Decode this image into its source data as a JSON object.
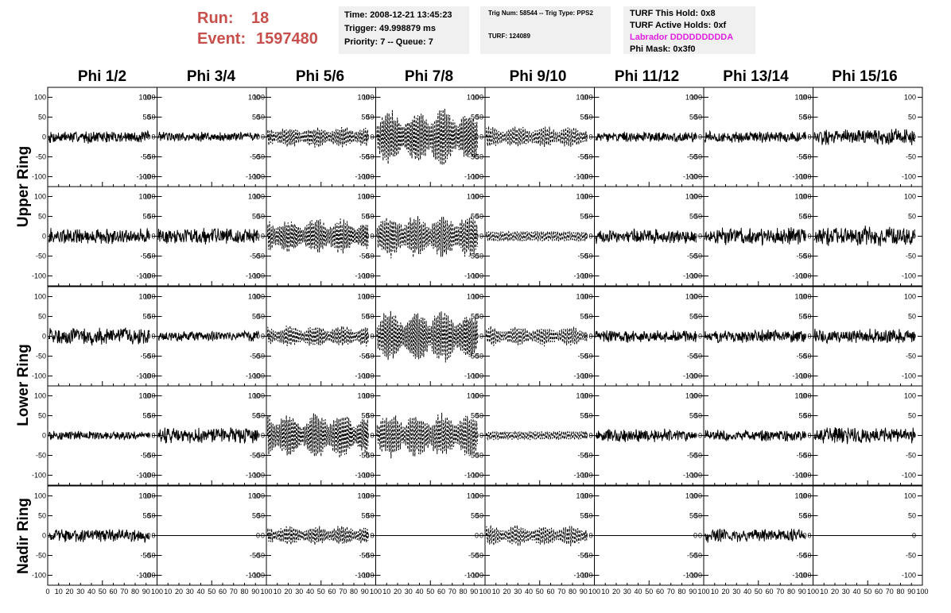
{
  "run": {
    "run_label": "Run:",
    "run_value": "18",
    "event_label": "Event:",
    "event_value": "1597480"
  },
  "info_time": {
    "time": "Time: 2008-12-21 13:45:23",
    "trigger": "Trigger: 49.998879 ms",
    "priority": "Priority: 7 -- Queue: 7"
  },
  "info_trig": {
    "trig": "Trig Num: 58544 -- Trig Type: PPS2",
    "turf": "TURF: 124089"
  },
  "info_turf": {
    "hold": "TURF This Hold: 0x8",
    "active": "TURF Active Holds: 0xf",
    "labrador": "Labrador DDDDDDDDDA",
    "mask": "Phi Mask: 0x3f0",
    "labrador_color": "#e020e0"
  },
  "colors": {
    "run_text": "#c8504c",
    "info_bg": "#f0f0f0",
    "trace": "#000000"
  },
  "chart_data": {
    "type": "line",
    "columns": [
      "Phi 1/2",
      "Phi 3/4",
      "Phi 5/6",
      "Phi 7/8",
      "Phi 9/10",
      "Phi 11/12",
      "Phi 13/14",
      "Phi 15/16"
    ],
    "rows": [
      "Upper Ring",
      "Upper Ring",
      "Lower Ring",
      "Lower Ring",
      "Nadir Ring"
    ],
    "row_labels": [
      "Upper Ring",
      "Lower Ring",
      "Nadir Ring"
    ],
    "xlim": [
      0,
      100
    ],
    "ylim": [
      -125,
      125
    ],
    "x_ticks": [
      0,
      10,
      20,
      30,
      40,
      50,
      60,
      70,
      80,
      90,
      100
    ],
    "x_tick_labels": [
      "0",
      "10",
      "20",
      "30",
      "40",
      "50",
      "60",
      "70",
      "80",
      "90",
      "100"
    ],
    "y_ticks": [
      100,
      50,
      0,
      -50,
      -100
    ],
    "y_tick_labels": [
      "100",
      "50",
      "0",
      "-50",
      "-100"
    ],
    "grid": false,
    "traces": [
      [
        {
          "amp": 17,
          "style": "solid",
          "freq": 0,
          "env": false
        },
        {
          "amp": 14,
          "style": "solid",
          "freq": 0,
          "env": false
        },
        {
          "amp": 28,
          "style": "dashed",
          "freq": 0.55,
          "env": true
        },
        {
          "amp": 75,
          "style": "dashed",
          "freq": 0.6,
          "env": true
        },
        {
          "amp": 30,
          "style": "dashed",
          "freq": 0.5,
          "env": true
        },
        {
          "amp": 14,
          "style": "solid",
          "freq": 0,
          "env": false
        },
        {
          "amp": 16,
          "style": "solid",
          "freq": 0,
          "env": false
        },
        {
          "amp": 22,
          "style": "solid",
          "freq": 0,
          "env": false
        }
      ],
      [
        {
          "amp": 22,
          "style": "solid",
          "freq": 0,
          "env": false
        },
        {
          "amp": 22,
          "style": "solid",
          "freq": 0,
          "env": false
        },
        {
          "amp": 48,
          "style": "dashed",
          "freq": 0.6,
          "env": true
        },
        {
          "amp": 60,
          "style": "dashed",
          "freq": 0.55,
          "env": true
        },
        {
          "amp": 14,
          "style": "dashed",
          "freq": 0.5,
          "env": false
        },
        {
          "amp": 20,
          "style": "solid",
          "freq": 0,
          "env": false
        },
        {
          "amp": 24,
          "style": "solid",
          "freq": 0,
          "env": false
        },
        {
          "amp": 28,
          "style": "solid",
          "freq": 0,
          "env": false
        }
      ],
      [
        {
          "amp": 24,
          "style": "solid",
          "freq": 0,
          "env": false
        },
        {
          "amp": 14,
          "style": "solid",
          "freq": 0,
          "env": false
        },
        {
          "amp": 28,
          "style": "dashed",
          "freq": 0.55,
          "env": true
        },
        {
          "amp": 70,
          "style": "dashed",
          "freq": 0.6,
          "env": true
        },
        {
          "amp": 26,
          "style": "dashed",
          "freq": 0.5,
          "env": true
        },
        {
          "amp": 18,
          "style": "solid",
          "freq": 0,
          "env": false
        },
        {
          "amp": 18,
          "style": "solid",
          "freq": 0,
          "env": false
        },
        {
          "amp": 20,
          "style": "solid",
          "freq": 0,
          "env": false
        }
      ],
      [
        {
          "amp": 12,
          "style": "solid",
          "freq": 0,
          "env": false
        },
        {
          "amp": 22,
          "style": "solid",
          "freq": 0,
          "env": false
        },
        {
          "amp": 62,
          "style": "dashed",
          "freq": 0.6,
          "env": true
        },
        {
          "amp": 60,
          "style": "dashed",
          "freq": 0.55,
          "env": true
        },
        {
          "amp": 12,
          "style": "dashed",
          "freq": 0.5,
          "env": false
        },
        {
          "amp": 18,
          "style": "solid",
          "freq": 0,
          "env": false
        },
        {
          "amp": 16,
          "style": "solid",
          "freq": 0,
          "env": false
        },
        {
          "amp": 22,
          "style": "solid",
          "freq": 0,
          "env": false
        }
      ],
      [
        {
          "amp": 18,
          "style": "solid",
          "freq": 0,
          "env": false
        },
        {
          "amp": 0,
          "style": "flat",
          "freq": 0,
          "env": false
        },
        {
          "amp": 26,
          "style": "dashed",
          "freq": 0.55,
          "env": true
        },
        {
          "amp": 0,
          "style": "flat",
          "freq": 0,
          "env": false
        },
        {
          "amp": 28,
          "style": "dashed",
          "freq": 0.5,
          "env": true
        },
        {
          "amp": 0,
          "style": "flat",
          "freq": 0,
          "env": false
        },
        {
          "amp": 18,
          "style": "solid",
          "freq": 0,
          "env": false
        },
        {
          "amp": 0,
          "style": "flat",
          "freq": 0,
          "env": false
        }
      ]
    ]
  }
}
